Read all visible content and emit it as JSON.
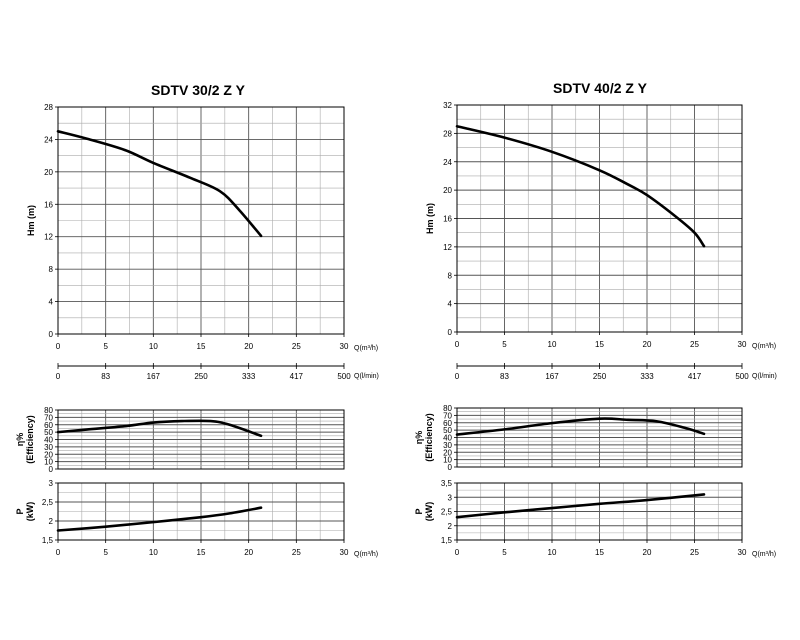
{
  "chart_data": [
    {
      "pump": "SDTV 30/2 Z Y",
      "type": "line",
      "x_unit": "Q(m³/h)",
      "lpm_unit": "Q(l/min)",
      "grid": true,
      "plots": [
        {
          "key": "head",
          "title": "SDTV 30/2 Z Y",
          "ylabel": [
            "Hm (m)"
          ],
          "xlim": [
            0,
            30
          ],
          "ylim": [
            0,
            28
          ],
          "yticks": [
            "0",
            "4",
            "8",
            "12",
            "16",
            "20",
            "24",
            "28"
          ],
          "xticks": [
            "0",
            "5",
            "10",
            "15",
            "20",
            "25",
            "30"
          ],
          "lpm_ticks": [
            "0",
            "83",
            "167",
            "250",
            "333",
            "417",
            "500"
          ],
          "x": [
            0,
            3,
            7,
            10,
            14,
            17,
            19,
            21.3
          ],
          "y": [
            25,
            24.1,
            22.7,
            21.1,
            19.2,
            17.6,
            15.3,
            12.1
          ]
        },
        {
          "key": "efficiency",
          "ylabel": [
            "η%",
            "(Efficiency)"
          ],
          "xlim": [
            0,
            30
          ],
          "ylim": [
            0,
            80
          ],
          "yticks": [
            "0",
            "10",
            "20",
            "30",
            "40",
            "50",
            "60",
            "70",
            "80"
          ],
          "x": [
            0,
            3,
            7,
            10,
            13,
            16,
            18,
            21.3
          ],
          "y": [
            50,
            53.5,
            58,
            63,
            65,
            65,
            60,
            45
          ]
        },
        {
          "key": "power",
          "ylabel": [
            "P",
            "(kW)"
          ],
          "xlim": [
            0,
            30
          ],
          "ylim": [
            1.5,
            3
          ],
          "yticks": [
            "1,5",
            "2",
            "2,5",
            "3"
          ],
          "xticks": [
            "0",
            "5",
            "10",
            "15",
            "20",
            "25",
            "30"
          ],
          "x": [
            0,
            5,
            10,
            15,
            18,
            21.3
          ],
          "y": [
            1.75,
            1.85,
            1.97,
            2.1,
            2.2,
            2.35
          ]
        }
      ]
    },
    {
      "pump": "SDTV 40/2 Z Y",
      "type": "line",
      "x_unit": "Q(m³/h)",
      "lpm_unit": "Q(l/min)",
      "grid": true,
      "plots": [
        {
          "key": "head",
          "title": "SDTV 40/2 Z Y",
          "ylabel": [
            "Hm (m)"
          ],
          "xlim": [
            0,
            30
          ],
          "ylim": [
            0,
            32
          ],
          "yticks": [
            "0",
            "4",
            "8",
            "12",
            "16",
            "20",
            "24",
            "28",
            "32"
          ],
          "xticks": [
            "0",
            "5",
            "10",
            "15",
            "20",
            "25",
            "30"
          ],
          "lpm_ticks": [
            "0",
            "83",
            "167",
            "250",
            "333",
            "417",
            "500"
          ],
          "x": [
            0,
            5,
            10,
            15,
            18,
            20,
            23,
            25,
            26
          ],
          "y": [
            29,
            27.4,
            25.4,
            22.8,
            20.8,
            19.3,
            16.3,
            14,
            12.1
          ]
        },
        {
          "key": "efficiency",
          "ylabel": [
            "η%",
            "(Efficiency)"
          ],
          "xlim": [
            0,
            30
          ],
          "ylim": [
            0,
            80
          ],
          "yticks": [
            "0",
            "10",
            "20",
            "30",
            "40",
            "50",
            "60",
            "70",
            "80"
          ],
          "x": [
            0,
            5,
            10,
            15,
            18,
            21,
            24,
            26
          ],
          "y": [
            44,
            51,
            59.5,
            65.5,
            64,
            62,
            53,
            45
          ]
        },
        {
          "key": "power",
          "ylabel": [
            "P",
            "(kW)"
          ],
          "xlim": [
            0,
            30
          ],
          "ylim": [
            1.5,
            3.5
          ],
          "yticks": [
            "1,5",
            "2",
            "2,5",
            "3",
            "3,5"
          ],
          "xticks": [
            "0",
            "5",
            "10",
            "15",
            "20",
            "25",
            "30"
          ],
          "x": [
            0,
            5,
            10,
            15,
            20,
            26
          ],
          "y": [
            2.3,
            2.47,
            2.62,
            2.77,
            2.9,
            3.1
          ]
        }
      ]
    }
  ]
}
